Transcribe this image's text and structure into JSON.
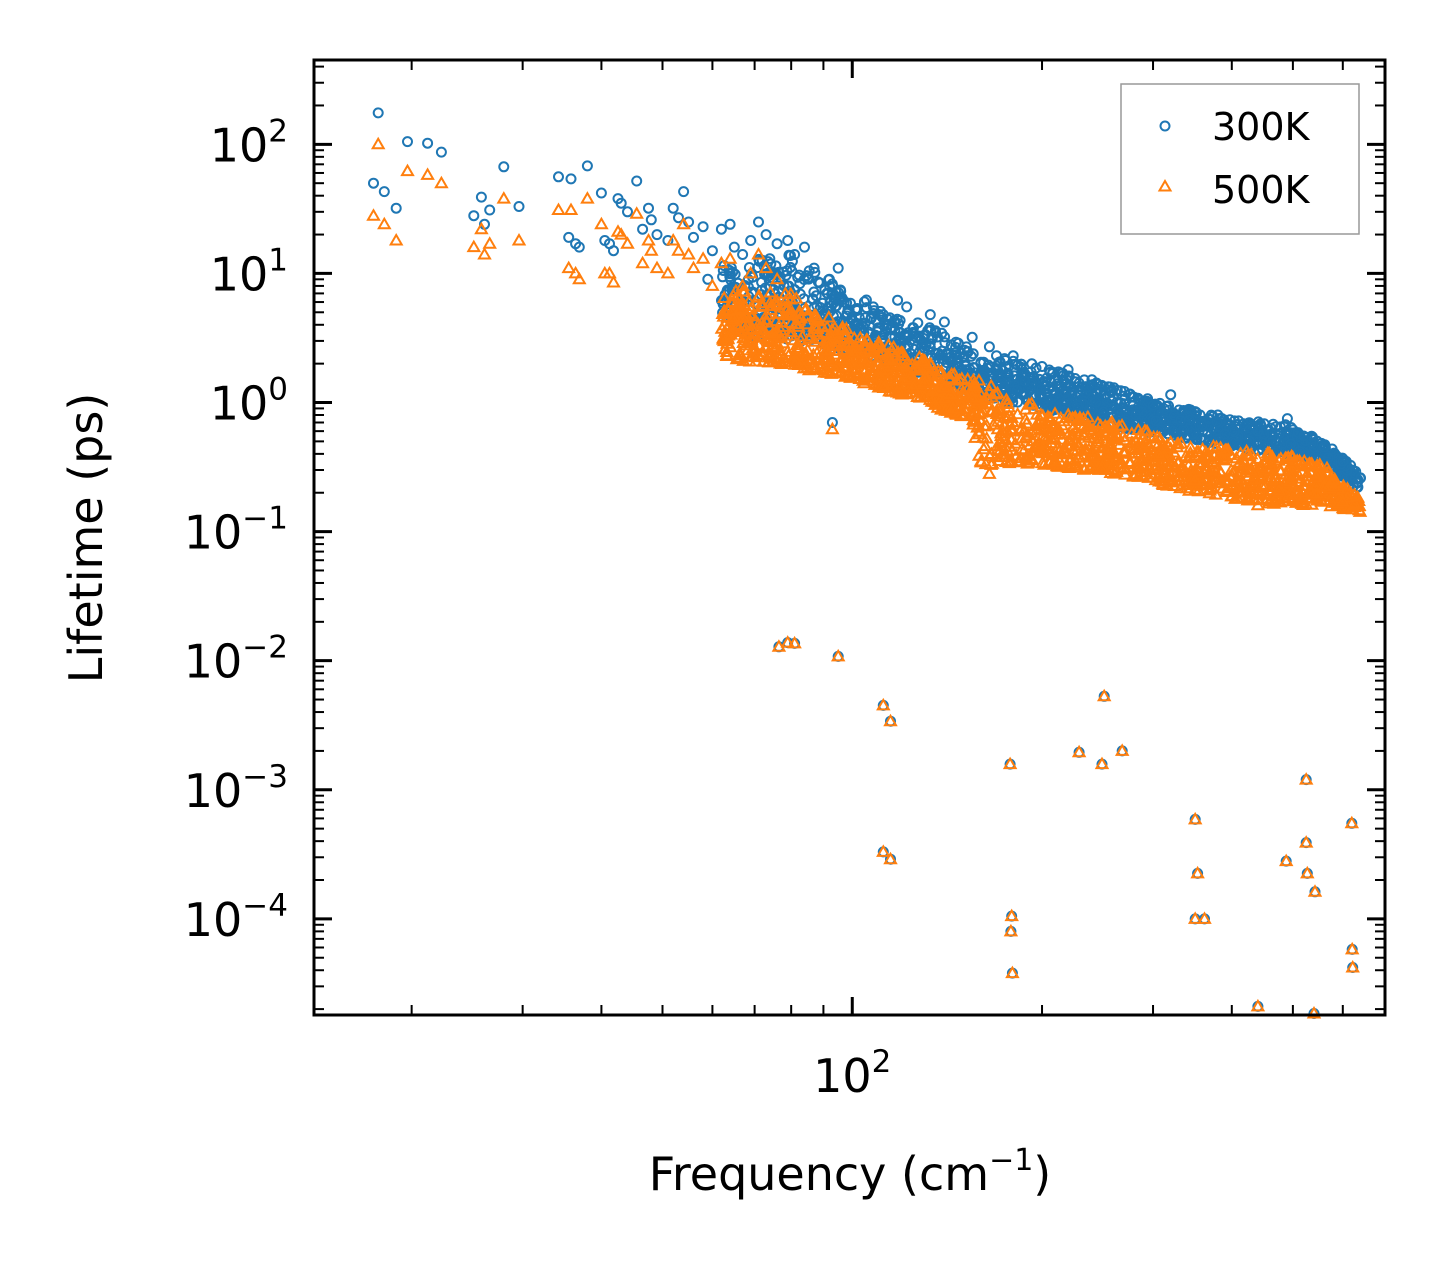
{
  "chart_data": {
    "type": "scatter",
    "title": "",
    "xlabel": "Frequency (cm",
    "xlabel_sup": "−1",
    "xlabel_end": ")",
    "ylabel": "Lifetime (ps)",
    "xscale": "log",
    "yscale": "log",
    "xlim": [
      14,
      700
    ],
    "ylim": [
      1.8e-05,
      450
    ],
    "x_major_ticks": [
      {
        "value": 100,
        "base": "10",
        "exp": "2"
      }
    ],
    "y_major_ticks": [
      {
        "value": 100,
        "base": "10",
        "exp": "2"
      },
      {
        "value": 10,
        "base": "10",
        "exp": "1"
      },
      {
        "value": 1,
        "base": "10",
        "exp": "0"
      },
      {
        "value": 0.1,
        "base": "10",
        "exp": "−1"
      },
      {
        "value": 0.01,
        "base": "10",
        "exp": "−2"
      },
      {
        "value": 0.001,
        "base": "10",
        "exp": "−3"
      },
      {
        "value": 0.0001,
        "base": "10",
        "exp": "−4"
      }
    ],
    "legend_position": "top-right",
    "series": [
      {
        "name": "300K",
        "marker": "circle",
        "color": "#1f77b4",
        "points": [
          [
            17.4,
            50
          ],
          [
            17.7,
            175
          ],
          [
            18.1,
            43
          ],
          [
            18.9,
            32
          ],
          [
            19.7,
            105
          ],
          [
            21.2,
            102
          ],
          [
            22.3,
            87
          ],
          [
            25.1,
            28
          ],
          [
            25.8,
            39
          ],
          [
            26.1,
            24
          ],
          [
            26.6,
            31
          ],
          [
            28.0,
            67
          ],
          [
            29.6,
            33
          ],
          [
            34.2,
            56
          ],
          [
            35.5,
            19
          ],
          [
            35.8,
            54
          ],
          [
            36.4,
            17
          ],
          [
            36.9,
            16
          ],
          [
            38.0,
            68
          ],
          [
            40.0,
            42
          ],
          [
            40.5,
            18
          ],
          [
            41.2,
            17
          ],
          [
            41.8,
            15
          ],
          [
            42.5,
            38
          ],
          [
            43.0,
            35
          ],
          [
            44.0,
            30
          ],
          [
            45.5,
            52
          ],
          [
            46.5,
            22
          ],
          [
            47.5,
            32
          ],
          [
            48.0,
            26
          ],
          [
            49.0,
            20
          ],
          [
            51.0,
            18
          ],
          [
            52.0,
            32
          ],
          [
            53.0,
            27
          ],
          [
            54.0,
            43
          ],
          [
            55.0,
            25
          ],
          [
            56.0,
            19
          ],
          [
            58.0,
            23
          ],
          [
            59.0,
            9
          ],
          [
            60.0,
            15
          ],
          [
            62.0,
            22
          ],
          [
            64.0,
            24
          ],
          [
            65.0,
            16
          ],
          [
            67.0,
            14
          ],
          [
            69.0,
            18
          ],
          [
            71.0,
            25
          ],
          [
            73.0,
            20
          ],
          [
            74.0,
            13
          ],
          [
            76.0,
            17
          ],
          [
            79.0,
            18
          ],
          [
            81.0,
            14
          ],
          [
            84.0,
            16
          ],
          [
            87.0,
            11
          ],
          [
            92.0,
            9
          ],
          [
            95.0,
            11
          ],
          [
            93.0,
            0.7
          ],
          [
            108.0,
            5.5
          ],
          [
            112.0,
            4.8
          ],
          [
            118.0,
            6.2
          ],
          [
            122.0,
            5.5
          ],
          [
            133.0,
            4.8
          ],
          [
            140.0,
            4.2
          ],
          [
            155.0,
            3.2
          ],
          [
            165.0,
            2.7
          ],
          [
            180.0,
            2.3
          ],
          [
            200.0,
            1.9
          ],
          [
            220.0,
            1.8
          ],
          [
            240.0,
            1.5
          ],
          [
            260.0,
            1.3
          ],
          [
            280.0,
            1.1
          ],
          [
            300.0,
            0.95
          ],
          [
            320.0,
            1.15
          ],
          [
            350.0,
            0.85
          ],
          [
            380.0,
            0.8
          ],
          [
            410.0,
            0.72
          ],
          [
            440.0,
            0.6
          ],
          [
            470.0,
            0.65
          ],
          [
            490.0,
            0.75
          ],
          [
            520.0,
            0.55
          ],
          [
            560.0,
            0.45
          ],
          [
            600.0,
            0.35
          ],
          [
            640.0,
            0.26
          ],
          [
            76.5,
            0.0128
          ],
          [
            79.0,
            0.0138
          ],
          [
            81.0,
            0.0136
          ],
          [
            95.0,
            0.0108
          ],
          [
            112.0,
            0.0045
          ],
          [
            115.0,
            0.0034
          ],
          [
            112.0,
            0.00033
          ],
          [
            115.0,
            0.00029
          ],
          [
            178.0,
            0.00158
          ],
          [
            179.0,
            0.000105
          ],
          [
            178.5,
            8e-05
          ],
          [
            179.5,
            3.8e-05
          ],
          [
            229.0,
            0.00195
          ],
          [
            249.0,
            0.00158
          ],
          [
            251.0,
            0.0053
          ],
          [
            268.0,
            0.002
          ],
          [
            350.0,
            0.00059
          ],
          [
            353.0,
            0.000225
          ],
          [
            350.0,
            0.0001
          ],
          [
            362.0,
            0.0001
          ],
          [
            425.0,
            1.65e-05
          ],
          [
            440.0,
            2.1e-05
          ],
          [
            488.0,
            0.00028
          ],
          [
            525.0,
            0.0012
          ],
          [
            525.0,
            0.00039
          ],
          [
            527.0,
            0.000225
          ],
          [
            542.0,
            0.000162
          ],
          [
            540.0,
            1.85e-05
          ],
          [
            620.0,
            0.00055
          ],
          [
            621.0,
            5.8e-05
          ],
          [
            622.0,
            4.2e-05
          ]
        ],
        "bands": [
          [
            [
              62,
              12
            ],
            [
              80,
              14
            ],
            [
              100,
              7
            ],
            [
              130,
              4
            ],
            [
              160,
              2.6
            ],
            [
              200,
              1.9
            ],
            [
              260,
              1.3
            ],
            [
              320,
              0.95
            ],
            [
              400,
              0.75
            ],
            [
              480,
              0.7
            ],
            [
              560,
              0.5
            ],
            [
              640,
              0.28
            ]
          ],
          [
            [
              62,
              3.5
            ],
            [
              80,
              3
            ],
            [
              100,
              2.5
            ],
            [
              130,
              1.6
            ],
            [
              160,
              1.1
            ],
            [
              200,
              0.9
            ],
            [
              260,
              0.65
            ],
            [
              320,
              0.55
            ],
            [
              400,
              0.45
            ],
            [
              480,
              0.4
            ],
            [
              560,
              0.35
            ],
            [
              640,
              0.2
            ]
          ]
        ]
      },
      {
        "name": "500K",
        "marker": "triangle",
        "color": "#ff7f0e",
        "points": [
          [
            17.4,
            28
          ],
          [
            17.7,
            100
          ],
          [
            18.1,
            24
          ],
          [
            18.9,
            18
          ],
          [
            19.7,
            62
          ],
          [
            21.2,
            58
          ],
          [
            22.3,
            50
          ],
          [
            25.1,
            16
          ],
          [
            25.8,
            22
          ],
          [
            26.1,
            14
          ],
          [
            26.6,
            17
          ],
          [
            28.0,
            38
          ],
          [
            29.6,
            18
          ],
          [
            34.2,
            31
          ],
          [
            35.5,
            11
          ],
          [
            35.8,
            31
          ],
          [
            36.4,
            10
          ],
          [
            36.9,
            9
          ],
          [
            38.0,
            38
          ],
          [
            40.0,
            24
          ],
          [
            40.5,
            10
          ],
          [
            41.2,
            10
          ],
          [
            41.8,
            8.5
          ],
          [
            42.5,
            21
          ],
          [
            43.0,
            20
          ],
          [
            44.0,
            17
          ],
          [
            45.5,
            29
          ],
          [
            46.5,
            12
          ],
          [
            47.5,
            18
          ],
          [
            48.0,
            15
          ],
          [
            49.0,
            11
          ],
          [
            51.0,
            10
          ],
          [
            52.0,
            18
          ],
          [
            53.0,
            15
          ],
          [
            54.0,
            24
          ],
          [
            55.0,
            14
          ],
          [
            56.0,
            11
          ],
          [
            58.0,
            13
          ],
          [
            60.0,
            8
          ],
          [
            62.0,
            12
          ],
          [
            64.0,
            13
          ],
          [
            67.0,
            8
          ],
          [
            69.0,
            10
          ],
          [
            71.0,
            14
          ],
          [
            73.0,
            11
          ],
          [
            76.0,
            9
          ],
          [
            93.0,
            0.62
          ],
          [
            140.0,
            1.3
          ],
          [
            155.0,
            1.1
          ],
          [
            160.0,
            0.35
          ],
          [
            165.0,
            0.28
          ],
          [
            200.0,
            0.42
          ],
          [
            260.0,
            0.4
          ],
          [
            300.0,
            0.35
          ],
          [
            350.0,
            0.25
          ],
          [
            400.0,
            0.22
          ],
          [
            440.0,
            0.16
          ],
          [
            500.0,
            0.18
          ],
          [
            600.0,
            0.17
          ],
          [
            76.5,
            0.0128
          ],
          [
            79.0,
            0.0138
          ],
          [
            81.0,
            0.0136
          ],
          [
            95.0,
            0.0108
          ],
          [
            112.0,
            0.0045
          ],
          [
            115.0,
            0.0034
          ],
          [
            112.0,
            0.00033
          ],
          [
            115.0,
            0.00029
          ],
          [
            178.0,
            0.00158
          ],
          [
            179.0,
            0.000105
          ],
          [
            178.5,
            8e-05
          ],
          [
            179.5,
            3.8e-05
          ],
          [
            229.0,
            0.00195
          ],
          [
            249.0,
            0.00158
          ],
          [
            251.0,
            0.0053
          ],
          [
            268.0,
            0.002
          ],
          [
            350.0,
            0.00059
          ],
          [
            353.0,
            0.000225
          ],
          [
            350.0,
            0.0001
          ],
          [
            362.0,
            0.0001
          ],
          [
            425.0,
            1.65e-05
          ],
          [
            440.0,
            2.1e-05
          ],
          [
            488.0,
            0.00028
          ],
          [
            525.0,
            0.0012
          ],
          [
            525.0,
            0.00039
          ],
          [
            527.0,
            0.000225
          ],
          [
            542.0,
            0.000162
          ],
          [
            540.0,
            1.85e-05
          ],
          [
            620.0,
            0.00055
          ],
          [
            621.0,
            5.8e-05
          ],
          [
            622.0,
            4.2e-05
          ]
        ],
        "bands": [
          [
            [
              62,
              7.5
            ],
            [
              80,
              7
            ],
            [
              100,
              3.6
            ],
            [
              130,
              2.2
            ],
            [
              155,
              1.5
            ],
            [
              160,
              1.5
            ],
            [
              200,
              0.95
            ],
            [
              260,
              0.7
            ],
            [
              320,
              0.55
            ],
            [
              400,
              0.45
            ],
            [
              480,
              0.42
            ],
            [
              560,
              0.33
            ],
            [
              640,
              0.18
            ]
          ],
          [
            [
              62,
              2.2
            ],
            [
              80,
              1.9
            ],
            [
              100,
              1.5
            ],
            [
              130,
              1.0
            ],
            [
              155,
              0.7
            ],
            [
              160,
              0.32
            ],
            [
              200,
              0.33
            ],
            [
              260,
              0.28
            ],
            [
              320,
              0.22
            ],
            [
              400,
              0.18
            ],
            [
              480,
              0.16
            ],
            [
              560,
              0.16
            ],
            [
              640,
              0.14
            ]
          ]
        ]
      }
    ]
  }
}
